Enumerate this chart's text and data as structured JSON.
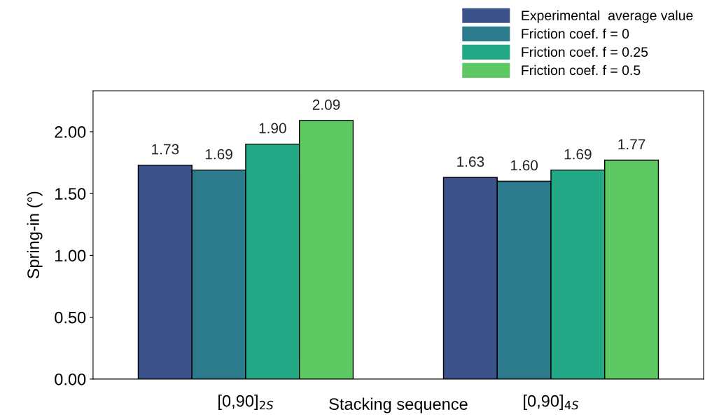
{
  "chart_data": {
    "type": "bar",
    "ylabel": "Spring-in (°)",
    "xlabel": "Stacking sequence",
    "categories": [
      "[0,90]$_{2S}$",
      "[0,90]$_{4S}$"
    ],
    "series": [
      {
        "name": "Experimental  average value",
        "color": "#3b528b",
        "values": [
          1.73,
          1.63
        ],
        "value_labels": [
          "1.73",
          "1.63"
        ]
      },
      {
        "name": "Friction coef. f = 0",
        "color": "#2c7b8c",
        "values": [
          1.69,
          1.6
        ],
        "value_labels": [
          "1.69",
          "1.60"
        ]
      },
      {
        "name": "Friction coef. f = 0.25",
        "color": "#22a884",
        "values": [
          1.9,
          1.69
        ],
        "value_labels": [
          "1.90",
          "1.69"
        ]
      },
      {
        "name": "Friction coef. f = 0.5",
        "color": "#5ec962",
        "values": [
          2.09,
          1.77
        ],
        "value_labels": [
          "2.09",
          "1.77"
        ]
      }
    ],
    "ylim": [
      0,
      2.33
    ],
    "yticks": [
      {
        "value": 0,
        "label": "0.00"
      },
      {
        "value": 0.5,
        "label": "0.50"
      },
      {
        "value": 1,
        "label": "1.00"
      },
      {
        "value": 1.5,
        "label": "1.50"
      },
      {
        "value": 2,
        "label": "2.00"
      }
    ],
    "grid": false,
    "legend": "top right"
  }
}
